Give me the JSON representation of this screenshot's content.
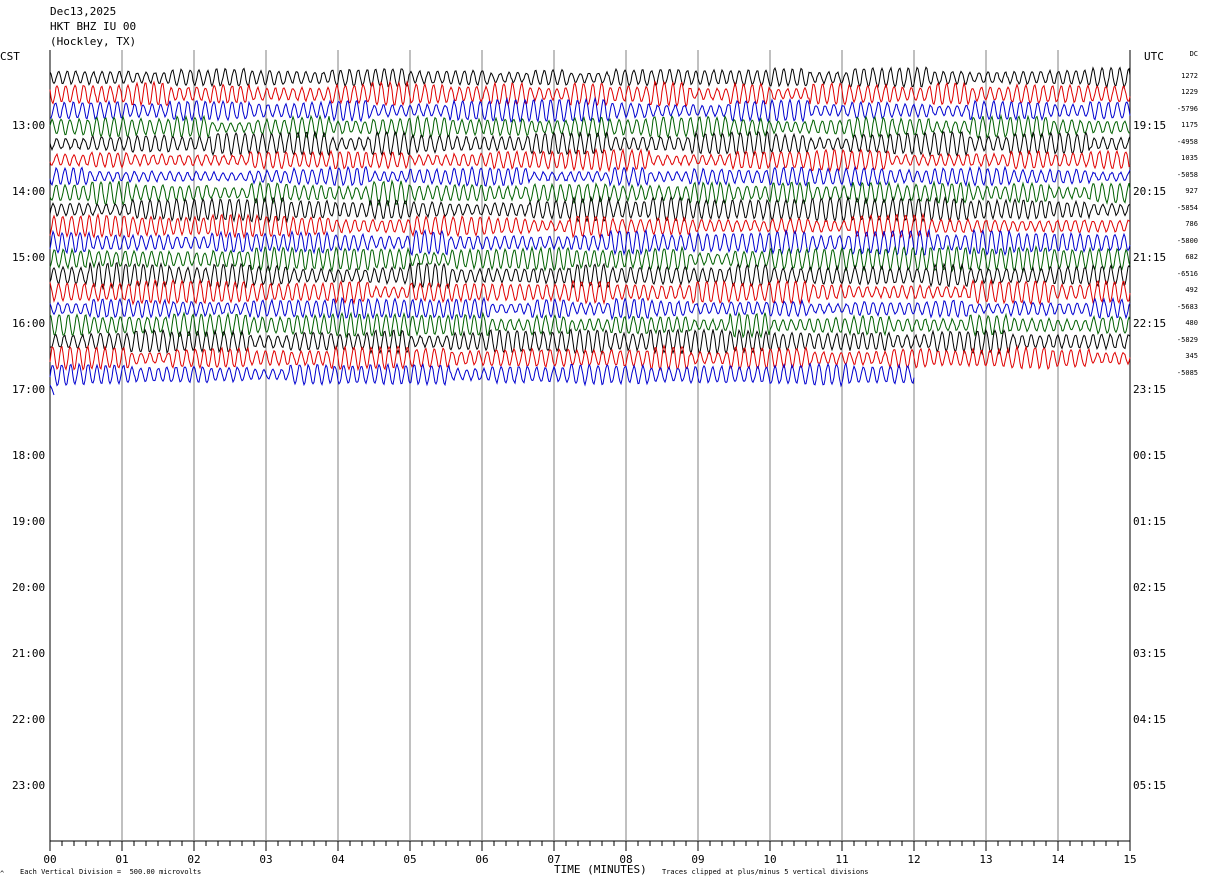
{
  "header": {
    "date": "Dec13,2025",
    "station": "HKT BHZ IU 00",
    "location": "(Hockley, TX)"
  },
  "labels": {
    "left_tz": "CST",
    "right_tz": "UTC",
    "dc_header": "DC"
  },
  "footer": {
    "scale_note": "Each Vertical Division =  500.00 microvolts",
    "x_axis_title": "TIME (MINUTES)",
    "clip_note": "Traces clipped at plus/minus 5 vertical divisions",
    "corner_mark": "^"
  },
  "colors": {
    "trace_cycle": [
      "#000000",
      "#e00000",
      "#0000d0",
      "#006000"
    ],
    "grid": "#808080"
  },
  "chart_data": {
    "type": "line",
    "x_unit": "minutes",
    "xlim": [
      0,
      15
    ],
    "x_ticks": [
      "00",
      "01",
      "02",
      "03",
      "04",
      "05",
      "06",
      "07",
      "08",
      "09",
      "10",
      "11",
      "12",
      "13",
      "14",
      "15"
    ],
    "left_hours": [
      "13:00",
      "14:00",
      "15:00",
      "16:00",
      "17:00",
      "18:00",
      "19:00",
      "20:00",
      "21:00",
      "22:00",
      "23:00"
    ],
    "right_hours": [
      "19:15",
      "20:15",
      "21:15",
      "22:15",
      "23:15",
      "00:15",
      "01:15",
      "02:15",
      "03:15",
      "04:15",
      "05:15"
    ],
    "rows_per_hour": 4,
    "first_row_hour_offset": -0.75,
    "dc_values": [
      "1272",
      "1229",
      "-5796",
      "1175",
      "-4958",
      "1035",
      "-5058",
      "927",
      "-5854",
      "786",
      "-5800",
      "682",
      "-6516",
      "492",
      "-5683",
      "480",
      "-5829",
      "345",
      "-5085"
    ],
    "traces": [
      {
        "color_index": 0,
        "amplitude": 0.9,
        "x_end": 15
      },
      {
        "color_index": 1,
        "amplitude": 1.0,
        "x_end": 15
      },
      {
        "color_index": 2,
        "amplitude": 0.95,
        "x_end": 15
      },
      {
        "color_index": 3,
        "amplitude": 0.9,
        "x_end": 15
      },
      {
        "color_index": 0,
        "amplitude": 1.0,
        "x_end": 15
      },
      {
        "color_index": 1,
        "amplitude": 0.9,
        "x_end": 15
      },
      {
        "color_index": 2,
        "amplitude": 0.8,
        "x_end": 15
      },
      {
        "color_index": 3,
        "amplitude": 1.0,
        "x_end": 15
      },
      {
        "color_index": 0,
        "amplitude": 1.0,
        "x_end": 15
      },
      {
        "color_index": 1,
        "amplitude": 0.95,
        "x_end": 15
      },
      {
        "color_index": 2,
        "amplitude": 1.1,
        "x_end": 15
      },
      {
        "color_index": 3,
        "amplitude": 1.0,
        "x_end": 15
      },
      {
        "color_index": 0,
        "amplitude": 1.1,
        "x_end": 15
      },
      {
        "color_index": 1,
        "amplitude": 1.0,
        "x_end": 15
      },
      {
        "color_index": 2,
        "amplitude": 0.85,
        "x_end": 15
      },
      {
        "color_index": 3,
        "amplitude": 1.0,
        "x_end": 15
      },
      {
        "color_index": 0,
        "amplitude": 1.0,
        "x_end": 15
      },
      {
        "color_index": 1,
        "amplitude": 1.0,
        "x_end": 15
      },
      {
        "color_index": 2,
        "amplitude": 0.9,
        "x_end": 12
      },
      {
        "color_index": 2,
        "amplitude": 0.5,
        "x_end": 0.08
      }
    ]
  }
}
